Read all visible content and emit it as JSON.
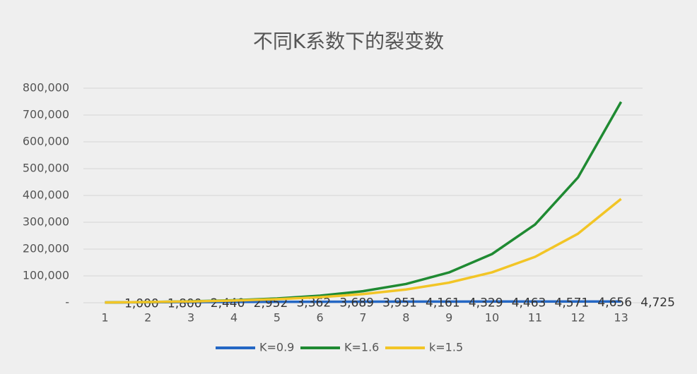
{
  "chart_data": {
    "type": "line",
    "title": "不同K系数下的裂变数",
    "categories": [
      "1",
      "2",
      "3",
      "4",
      "5",
      "6",
      "7",
      "8",
      "9",
      "10",
      "11",
      "12",
      "13"
    ],
    "ylim": [
      0,
      800000
    ],
    "yticks": [
      {
        "value": 0,
        "label": "-"
      },
      {
        "value": 100000,
        "label": "100,000"
      },
      {
        "value": 200000,
        "label": "200,000"
      },
      {
        "value": 300000,
        "label": "300,000"
      },
      {
        "value": 400000,
        "label": "400,000"
      },
      {
        "value": 500000,
        "label": "500,000"
      },
      {
        "value": 600000,
        "label": "600,000"
      },
      {
        "value": 700000,
        "label": "700,000"
      },
      {
        "value": 800000,
        "label": "800,000"
      }
    ],
    "grid": true,
    "legend": "bottom",
    "series": [
      {
        "name": "K=0.9",
        "color": "#2467c4",
        "values": [
          1000,
          1800,
          2440,
          2952,
          3362,
          3689,
          3951,
          4161,
          4329,
          4463,
          4571,
          4656,
          4725
        ],
        "value_labels": [
          "1,000",
          "1,800",
          "2,440",
          "2,952",
          "3,362",
          "3,689",
          "3,951",
          "4,161",
          "4,329",
          "4,463",
          "4,571",
          "4,656",
          "4,725"
        ]
      },
      {
        "name": "K=1.6",
        "color": "#1f8a32",
        "values": [
          1000,
          2600,
          5160,
          9256,
          15810,
          26295,
          43072,
          69915,
          112864,
          181583,
          291532,
          467452,
          748923
        ]
      },
      {
        "name": "k=1.5",
        "color": "#f2c526",
        "values": [
          1000,
          2500,
          4750,
          8125,
          13188,
          20781,
          32172,
          49258,
          74887,
          113330,
          170995,
          257493,
          387239
        ]
      }
    ]
  }
}
